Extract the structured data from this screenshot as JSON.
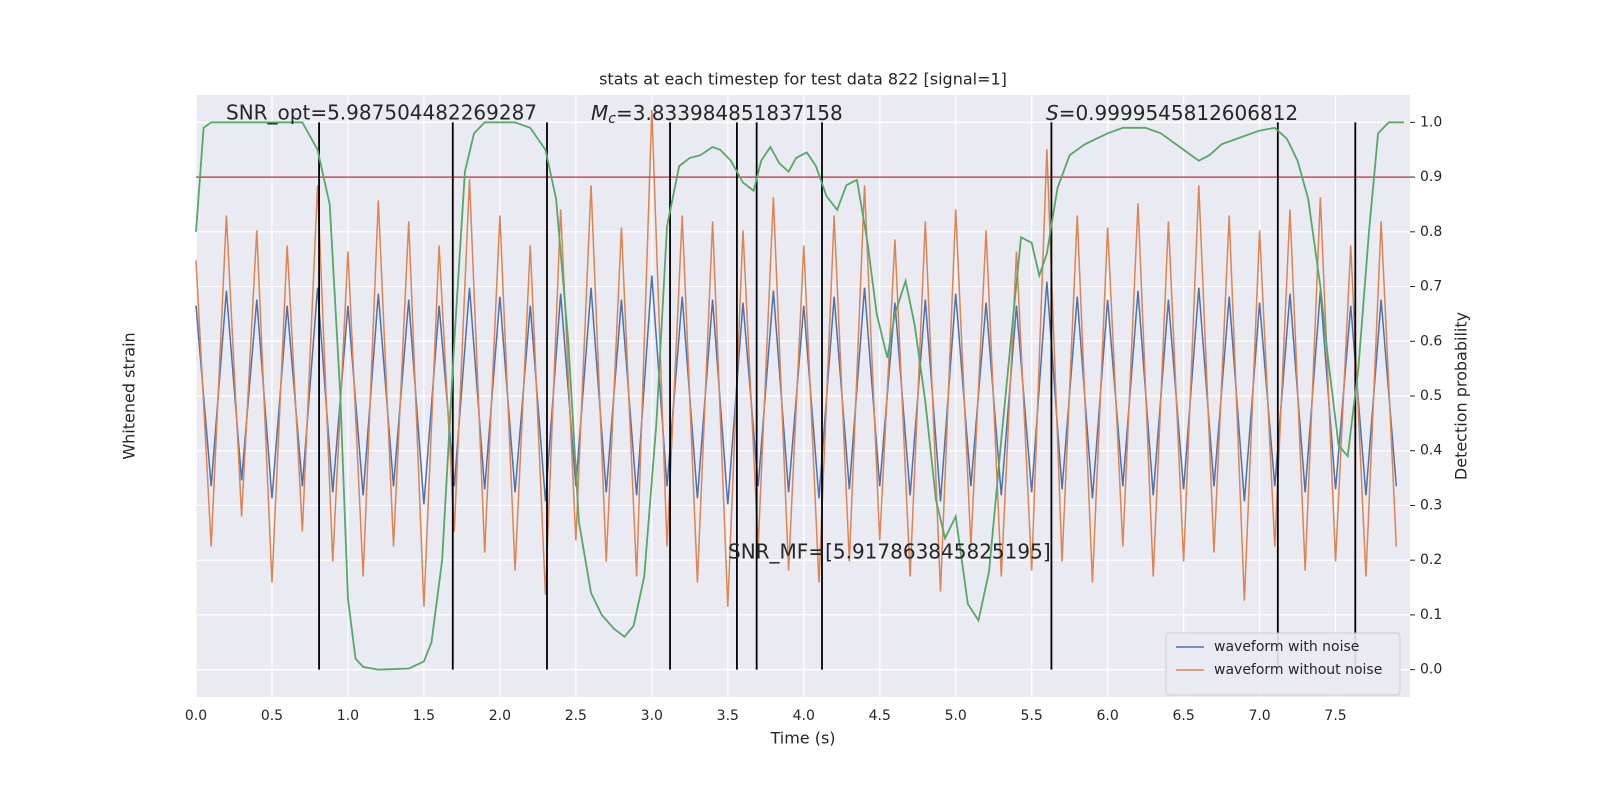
{
  "chart_data": {
    "type": "line",
    "title": "stats at each timestep for test data 822 [signal=1]",
    "x_label": "Time (s)",
    "y_label": "Whitened strain",
    "y2_label": "Detection probability",
    "xlim": [
      0,
      7.99
    ],
    "xticks": [
      {
        "value": 0,
        "label": "0.0"
      },
      {
        "value": 0.5,
        "label": "0.5"
      },
      {
        "value": 1,
        "label": "1.0"
      },
      {
        "value": 1.5,
        "label": "1.5"
      },
      {
        "value": 2,
        "label": "2.0"
      },
      {
        "value": 2.5,
        "label": "2.5"
      },
      {
        "value": 3,
        "label": "3.0"
      },
      {
        "value": 3.5,
        "label": "3.5"
      },
      {
        "value": 4,
        "label": "4.0"
      },
      {
        "value": 4.5,
        "label": "4.5"
      },
      {
        "value": 5,
        "label": "5.0"
      },
      {
        "value": 5.5,
        "label": "5.5"
      },
      {
        "value": 6,
        "label": "6.0"
      },
      {
        "value": 6.5,
        "label": "6.5"
      },
      {
        "value": 7,
        "label": "7.0"
      },
      {
        "value": 7.5,
        "label": "7.5"
      }
    ],
    "ylim": [
      -1,
      1
    ],
    "y2lim": [
      -0.05,
      1.05
    ],
    "y2ticks": [
      {
        "value": 0,
        "label": "0.0"
      },
      0.1,
      0.2,
      0.3,
      0.4,
      0.5,
      0.6,
      0.7,
      0.8,
      0.9,
      {
        "value": 1,
        "label": "1.0"
      }
    ],
    "grid": true,
    "legend": "lower right",
    "annotations": [
      {
        "text": "SNR_opt=5.987504482269287"
      },
      {
        "symbol": "M",
        "subscript": "c",
        "text": "=3.833984851837158"
      },
      {
        "symbol": "S",
        "text": "=0.9999545812606812"
      },
      {
        "text": "SNR_MF=[5.917863845825195]"
      }
    ],
    "x": [
      0,
      0.1,
      0.2,
      0.3,
      0.4,
      0.5,
      0.6,
      0.7,
      0.8,
      0.9,
      1,
      1.1,
      1.2,
      1.3,
      1.4,
      1.5,
      1.6,
      1.7,
      1.8,
      1.9,
      2,
      2.1,
      2.2,
      2.3,
      2.4,
      2.5,
      2.6,
      2.7,
      2.8,
      2.9,
      3,
      3.1,
      3.2,
      3.3,
      3.4,
      3.5,
      3.6,
      3.7,
      3.8,
      3.9,
      4,
      4.1,
      4.2,
      4.3,
      4.4,
      4.5,
      4.6,
      4.7,
      4.8,
      4.9,
      5,
      5.1,
      5.2,
      5.3,
      5.4,
      5.5,
      5.6,
      5.7,
      5.8,
      5.9,
      6,
      6.1,
      6.2,
      6.3,
      6.4,
      6.5,
      6.6,
      6.7,
      6.8,
      6.9,
      7,
      7.1,
      7.2,
      7.3,
      7.4,
      7.5,
      7.6,
      7.7,
      7.8,
      7.9
    ],
    "series": [
      {
        "name": "waveform with noise",
        "color": "#4c72b0",
        "values": [
          0.3,
          -0.3,
          0.35,
          -0.28,
          0.32,
          -0.34,
          0.3,
          -0.3,
          0.36,
          -0.32,
          0.3,
          -0.33,
          0.34,
          -0.3,
          0.32,
          -0.36,
          0.3,
          -0.3,
          0.36,
          -0.31,
          0.33,
          -0.32,
          0.3,
          -0.35,
          0.34,
          -0.3,
          0.36,
          -0.32,
          0.32,
          -0.33,
          0.4,
          -0.3,
          0.33,
          -0.34,
          0.32,
          -0.36,
          0.31,
          -0.3,
          0.35,
          -0.32,
          0.3,
          -0.34,
          0.33,
          -0.31,
          0.36,
          -0.3,
          0.31,
          -0.33,
          0.32,
          -0.35,
          0.34,
          -0.3,
          0.31,
          -0.33,
          0.3,
          -0.32,
          0.38,
          -0.31,
          0.33,
          -0.34,
          0.32,
          -0.3,
          0.35,
          -0.33,
          0.32,
          -0.31,
          0.36,
          -0.3,
          0.33,
          -0.35,
          0.31,
          -0.3,
          0.34,
          -0.32,
          0.35,
          -0.31,
          0.3,
          -0.33,
          0.32,
          -0.3
        ]
      },
      {
        "name": "waveform without noise",
        "color": "#dd8452",
        "values": [
          0.45,
          -0.5,
          0.6,
          -0.4,
          0.55,
          -0.62,
          0.5,
          -0.45,
          0.7,
          -0.55,
          0.48,
          -0.6,
          0.65,
          -0.5,
          0.58,
          -0.7,
          0.5,
          -0.45,
          0.72,
          -0.52,
          0.6,
          -0.58,
          0.5,
          -0.66,
          0.62,
          -0.48,
          0.7,
          -0.55,
          0.56,
          -0.6,
          0.95,
          -0.5,
          0.6,
          -0.62,
          0.58,
          -0.7,
          0.55,
          -0.5,
          0.66,
          -0.58,
          0.5,
          -0.62,
          0.6,
          -0.55,
          0.7,
          -0.48,
          0.52,
          -0.6,
          0.58,
          -0.65,
          0.62,
          -0.5,
          0.55,
          -0.6,
          0.48,
          -0.58,
          0.82,
          -0.55,
          0.6,
          -0.62,
          0.56,
          -0.5,
          0.64,
          -0.6,
          0.58,
          -0.55,
          0.7,
          -0.52,
          0.6,
          -0.68,
          0.55,
          -0.5,
          0.62,
          -0.58,
          0.66,
          -0.55,
          0.5,
          -0.6,
          0.58,
          -0.5
        ]
      },
      {
        "color": "#55a868",
        "axis": "y2",
        "x": [
          0,
          0.05,
          0.1,
          0.7,
          0.8,
          0.88,
          0.95,
          1,
          1.05,
          1.1,
          1.2,
          1.4,
          1.5,
          1.55,
          1.62,
          1.7,
          1.77,
          1.83,
          1.9,
          2.1,
          2.2,
          2.3,
          2.37,
          2.45,
          2.52,
          2.6,
          2.67,
          2.75,
          2.82,
          2.88,
          2.95,
          3.03,
          3.1,
          3.18,
          3.25,
          3.32,
          3.4,
          3.45,
          3.52,
          3.6,
          3.67,
          3.72,
          3.78,
          3.84,
          3.9,
          3.95,
          4.02,
          4.08,
          4.15,
          4.22,
          4.28,
          4.35,
          4.42,
          4.48,
          4.55,
          4.6,
          4.67,
          4.73,
          4.8,
          4.87,
          4.93,
          5,
          5.08,
          5.15,
          5.22,
          5.3,
          5.38,
          5.43,
          5.5,
          5.55,
          5.6,
          5.67,
          5.75,
          5.85,
          6,
          6.1,
          6.25,
          6.35,
          6.5,
          6.6,
          6.67,
          6.75,
          6.85,
          7,
          7.1,
          7.18,
          7.25,
          7.32,
          7.4,
          7.45,
          7.52,
          7.58,
          7.65,
          7.72,
          7.78,
          7.85,
          7.95
        ],
        "values": [
          0.8,
          0.99,
          1,
          1,
          0.95,
          0.85,
          0.5,
          0.13,
          0.02,
          0.005,
          0,
          0.002,
          0.015,
          0.05,
          0.2,
          0.6,
          0.91,
          0.98,
          1,
          1,
          0.99,
          0.95,
          0.86,
          0.6,
          0.27,
          0.14,
          0.1,
          0.075,
          0.06,
          0.08,
          0.17,
          0.45,
          0.81,
          0.92,
          0.935,
          0.94,
          0.955,
          0.95,
          0.93,
          0.89,
          0.875,
          0.93,
          0.955,
          0.925,
          0.91,
          0.935,
          0.945,
          0.92,
          0.865,
          0.84,
          0.885,
          0.895,
          0.78,
          0.65,
          0.57,
          0.65,
          0.71,
          0.63,
          0.49,
          0.31,
          0.24,
          0.28,
          0.12,
          0.09,
          0.18,
          0.42,
          0.65,
          0.79,
          0.78,
          0.72,
          0.76,
          0.88,
          0.94,
          0.96,
          0.98,
          0.99,
          0.99,
          0.98,
          0.95,
          0.93,
          0.94,
          0.96,
          0.97,
          0.985,
          0.99,
          0.97,
          0.93,
          0.86,
          0.7,
          0.57,
          0.41,
          0.39,
          0.55,
          0.8,
          0.98,
          1,
          1
        ]
      }
    ],
    "hlines": [
      {
        "value": 0.9,
        "color": "#c44e52",
        "axis": "y2"
      }
    ],
    "vlines": {
      "color": "#000000",
      "values": [
        0.81,
        1.69,
        2.31,
        3.12,
        3.56,
        3.69,
        4.12,
        5.63,
        7.12,
        7.63
      ]
    }
  }
}
